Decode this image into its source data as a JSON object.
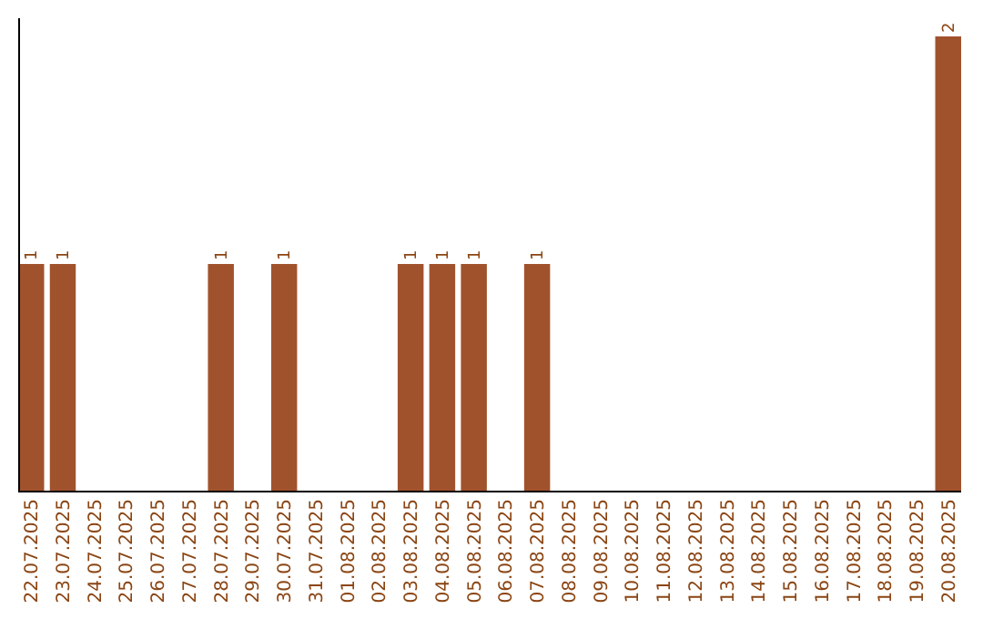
{
  "chart_data": {
    "type": "bar",
    "categories": [
      "22.07.2025",
      "23.07.2025",
      "24.07.2025",
      "25.07.2025",
      "26.07.2025",
      "27.07.2025",
      "28.07.2025",
      "29.07.2025",
      "30.07.2025",
      "31.07.2025",
      "01.08.2025",
      "02.08.2025",
      "03.08.2025",
      "04.08.2025",
      "05.08.2025",
      "06.08.2025",
      "07.08.2025",
      "08.08.2025",
      "09.08.2025",
      "10.08.2025",
      "11.08.2025",
      "12.08.2025",
      "13.08.2025",
      "14.08.2025",
      "15.08.2025",
      "16.08.2025",
      "17.08.2025",
      "18.08.2025",
      "19.08.2025",
      "20.08.2025"
    ],
    "values": [
      1,
      1,
      0,
      0,
      0,
      0,
      1,
      0,
      1,
      0,
      0,
      0,
      1,
      1,
      1,
      0,
      1,
      0,
      0,
      0,
      0,
      0,
      0,
      0,
      0,
      0,
      0,
      0,
      0,
      2
    ],
    "value_labels": [
      "1",
      "1",
      null,
      null,
      null,
      null,
      "1",
      null,
      "1",
      null,
      null,
      null,
      "1",
      "1",
      "1",
      null,
      "1",
      null,
      null,
      null,
      null,
      null,
      null,
      null,
      null,
      null,
      null,
      null,
      null,
      "2"
    ],
    "color": "#a0522d"
  }
}
